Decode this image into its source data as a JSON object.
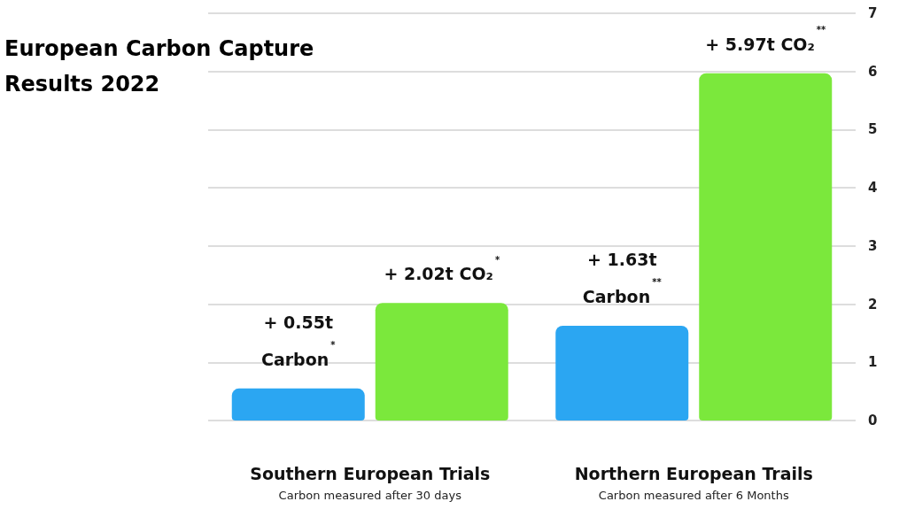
{
  "chart_data": {
    "type": "bar",
    "title": "European Carbon Capture\nResults 2022",
    "categories": [
      "Southern European Trials",
      "Northern European Trails"
    ],
    "series": [
      {
        "color": "#2ba6f2",
        "values": [
          0.55,
          1.63
        ],
        "value_labels": [
          "+ 0.55t\nCarbon$^{*}$",
          "+ 1.63t\nCarbon$^{**}$"
        ]
      },
      {
        "color": "#7be83c",
        "values": [
          2.02,
          5.97
        ],
        "value_labels": [
          "+ 2.02t CO₂$^{*}$",
          "+ 5.97t CO₂$^{**}$"
        ]
      }
    ],
    "annotations": [
      "Carbon measured after 30 days",
      "Carbon measured after 6 Months"
    ],
    "ylim": [
      0,
      7
    ],
    "yticks": [
      0,
      1,
      2,
      3,
      4,
      5,
      6,
      7
    ],
    "grid": "y"
  }
}
